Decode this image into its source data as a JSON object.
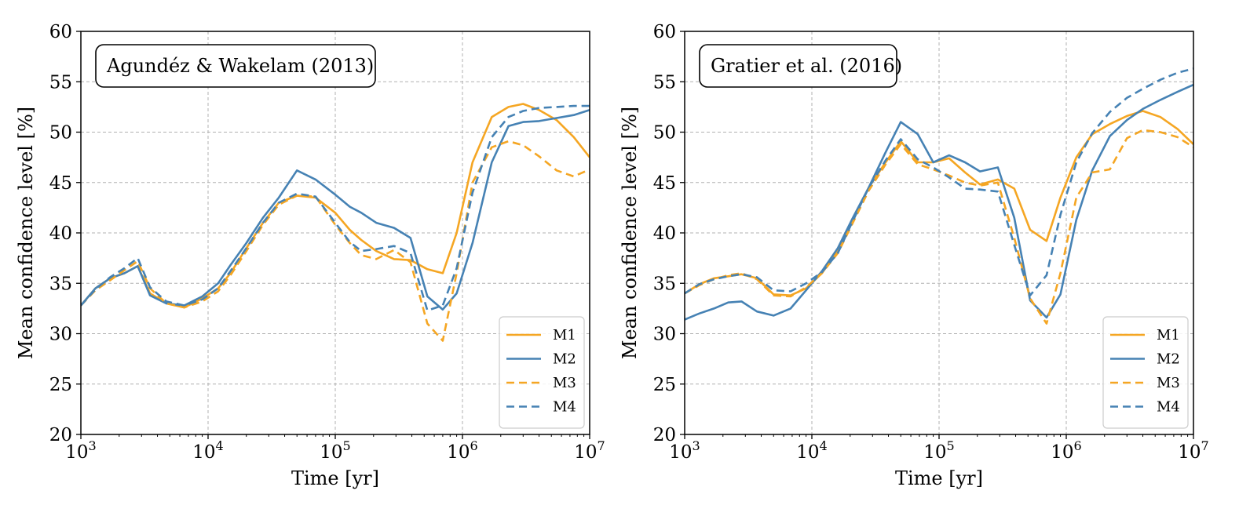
{
  "chart_data": [
    {
      "type": "line",
      "title": "Agundéz & Wakelam (2013)",
      "xlabel": "Time [yr]",
      "ylabel": "Mean confidence level [%]",
      "xscale": "log",
      "xlim": [
        1000,
        10000000
      ],
      "ylim": [
        20,
        60
      ],
      "yticks": [
        "20",
        "25",
        "30",
        "35",
        "40",
        "45",
        "50",
        "55",
        "60"
      ],
      "xticks": [
        {
          "base": "10",
          "exp": "3"
        },
        {
          "base": "10",
          "exp": "4"
        },
        {
          "base": "10",
          "exp": "5"
        },
        {
          "base": "10",
          "exp": "6"
        },
        {
          "base": "10",
          "exp": "7"
        }
      ],
      "grid": true,
      "legend_position": "lower-right",
      "series": [
        {
          "name": "M1",
          "color": "#f5a623",
          "dashed": false,
          "x": [
            1000,
            1300,
            1700,
            2200,
            2800,
            3500,
            4700,
            6500,
            9000,
            12000,
            15000,
            20000,
            27000,
            36000,
            50000,
            70000,
            100000,
            130000,
            160000,
            210000,
            290000,
            390000,
            530000,
            700000,
            900000,
            1200000,
            1700000,
            2300000,
            3000000,
            4000000,
            5500000,
            7500000,
            10000000
          ],
          "y": [
            32.8,
            34.5,
            35.5,
            36.0,
            36.7,
            34.0,
            33.0,
            32.6,
            33.5,
            34.5,
            36.0,
            38.5,
            41.0,
            43.0,
            43.7,
            43.5,
            42.0,
            40.3,
            39.3,
            38.2,
            37.4,
            37.3,
            36.4,
            36.0,
            40.0,
            47.0,
            51.5,
            52.5,
            52.8,
            52.2,
            51.2,
            49.5,
            47.5
          ]
        },
        {
          "name": "M2",
          "color": "#4682b4",
          "dashed": false,
          "x": [
            1000,
            1300,
            1700,
            2200,
            2800,
            3500,
            4700,
            6500,
            9000,
            12000,
            15000,
            20000,
            27000,
            36000,
            50000,
            70000,
            100000,
            130000,
            160000,
            210000,
            290000,
            390000,
            530000,
            700000,
            900000,
            1200000,
            1700000,
            2300000,
            3000000,
            4000000,
            5500000,
            7500000,
            10000000
          ],
          "y": [
            32.8,
            34.5,
            35.5,
            36.0,
            36.7,
            33.8,
            33.0,
            32.8,
            33.7,
            35.0,
            36.8,
            39.0,
            41.5,
            43.5,
            46.2,
            45.3,
            43.8,
            42.6,
            42.0,
            41.0,
            40.5,
            39.5,
            33.7,
            32.4,
            34.0,
            39.0,
            47.0,
            50.6,
            51.0,
            51.1,
            51.4,
            51.7,
            52.2
          ]
        },
        {
          "name": "M3",
          "color": "#f5a623",
          "dashed": true,
          "x": [
            1000,
            1300,
            1700,
            2200,
            2800,
            3500,
            4700,
            6500,
            9000,
            12000,
            15000,
            20000,
            27000,
            36000,
            50000,
            70000,
            100000,
            130000,
            160000,
            210000,
            290000,
            390000,
            530000,
            700000,
            900000,
            1200000,
            1700000,
            2300000,
            3000000,
            4000000,
            5500000,
            7500000,
            10000000
          ],
          "y": [
            32.8,
            34.3,
            35.3,
            36.3,
            37.2,
            34.5,
            33.0,
            32.6,
            33.2,
            34.2,
            35.8,
            38.2,
            40.8,
            42.8,
            43.7,
            43.6,
            40.8,
            39.0,
            37.8,
            37.4,
            38.3,
            37.1,
            31.0,
            29.3,
            36.0,
            45.0,
            48.5,
            49.1,
            48.7,
            47.6,
            46.2,
            45.6,
            46.3
          ]
        },
        {
          "name": "M4",
          "color": "#4682b4",
          "dashed": true,
          "x": [
            1000,
            1300,
            1700,
            2200,
            2800,
            3500,
            4700,
            6500,
            9000,
            12000,
            15000,
            20000,
            27000,
            36000,
            50000,
            70000,
            100000,
            130000,
            160000,
            210000,
            290000,
            390000,
            530000,
            700000,
            900000,
            1200000,
            1700000,
            2300000,
            3000000,
            4000000,
            5500000,
            7500000,
            10000000
          ],
          "y": [
            32.8,
            34.4,
            35.6,
            36.5,
            37.5,
            34.6,
            33.2,
            32.8,
            33.4,
            34.5,
            36.2,
            38.5,
            41.0,
            43.0,
            43.9,
            43.6,
            41.0,
            39.1,
            38.2,
            38.4,
            38.7,
            38.0,
            32.3,
            32.8,
            36.5,
            44.0,
            49.5,
            51.5,
            52.1,
            52.4,
            52.5,
            52.6,
            52.6
          ]
        }
      ]
    },
    {
      "type": "line",
      "title": "Gratier et al. (2016)",
      "xlabel": "Time [yr]",
      "ylabel": "Mean confidence level [%]",
      "xscale": "log",
      "xlim": [
        1000,
        10000000
      ],
      "ylim": [
        20,
        60
      ],
      "yticks": [
        "20",
        "25",
        "30",
        "35",
        "40",
        "45",
        "50",
        "55",
        "60"
      ],
      "xticks": [
        {
          "base": "10",
          "exp": "3"
        },
        {
          "base": "10",
          "exp": "4"
        },
        {
          "base": "10",
          "exp": "5"
        },
        {
          "base": "10",
          "exp": "6"
        },
        {
          "base": "10",
          "exp": "7"
        }
      ],
      "grid": true,
      "legend_position": "lower-right",
      "series": [
        {
          "name": "M1",
          "color": "#f5a623",
          "dashed": false,
          "x": [
            1000,
            1300,
            1700,
            2200,
            2800,
            3700,
            5000,
            6800,
            9000,
            12000,
            16000,
            21000,
            28000,
            38000,
            50000,
            68000,
            90000,
            120000,
            160000,
            210000,
            290000,
            390000,
            520000,
            700000,
            900000,
            1200000,
            1600000,
            2200000,
            3000000,
            4000000,
            5500000,
            7500000,
            10000000
          ],
          "y": [
            34.0,
            34.9,
            35.5,
            35.7,
            35.9,
            35.5,
            33.9,
            33.8,
            34.5,
            36.0,
            38.2,
            41.2,
            44.5,
            47.0,
            49.1,
            47.0,
            47.0,
            47.4,
            46.0,
            44.8,
            45.3,
            44.4,
            40.3,
            39.2,
            43.5,
            47.5,
            49.8,
            50.8,
            51.6,
            52.1,
            51.5,
            50.3,
            48.8
          ]
        },
        {
          "name": "M2",
          "color": "#4682b4",
          "dashed": false,
          "x": [
            1000,
            1300,
            1700,
            2200,
            2800,
            3700,
            5000,
            6800,
            9000,
            12000,
            16000,
            21000,
            28000,
            38000,
            50000,
            68000,
            90000,
            120000,
            160000,
            210000,
            290000,
            390000,
            520000,
            700000,
            900000,
            1200000,
            1600000,
            2200000,
            3000000,
            4000000,
            5500000,
            7500000,
            10000000
          ],
          "y": [
            31.4,
            32.0,
            32.5,
            33.1,
            33.2,
            32.2,
            31.8,
            32.5,
            34.3,
            36.2,
            38.5,
            41.5,
            44.5,
            48.0,
            51.0,
            49.8,
            47.0,
            47.7,
            47.0,
            46.1,
            46.5,
            41.5,
            33.3,
            31.6,
            33.9,
            41.3,
            46.2,
            49.6,
            51.2,
            52.3,
            53.2,
            54.0,
            54.7
          ]
        },
        {
          "name": "M3",
          "color": "#f5a623",
          "dashed": true,
          "x": [
            1000,
            1300,
            1700,
            2200,
            2800,
            3700,
            5000,
            6800,
            9000,
            12000,
            16000,
            21000,
            28000,
            38000,
            50000,
            68000,
            90000,
            120000,
            160000,
            210000,
            290000,
            390000,
            520000,
            700000,
            900000,
            1200000,
            1600000,
            2200000,
            3000000,
            4000000,
            5500000,
            7500000,
            10000000
          ],
          "y": [
            34.0,
            34.8,
            35.4,
            35.8,
            36.0,
            35.4,
            33.8,
            33.7,
            34.6,
            36.0,
            38.0,
            41.0,
            44.2,
            46.8,
            48.8,
            46.8,
            46.3,
            45.7,
            45.0,
            44.7,
            45.0,
            39.5,
            33.5,
            31.0,
            36.0,
            43.5,
            46.0,
            46.3,
            49.4,
            50.2,
            50.0,
            49.5,
            48.5
          ]
        },
        {
          "name": "M4",
          "color": "#4682b4",
          "dashed": true,
          "x": [
            1000,
            1300,
            1700,
            2200,
            2800,
            3700,
            5000,
            6800,
            9000,
            12000,
            16000,
            21000,
            28000,
            38000,
            50000,
            68000,
            90000,
            120000,
            160000,
            210000,
            290000,
            390000,
            520000,
            700000,
            900000,
            1200000,
            1600000,
            2200000,
            3000000,
            4000000,
            5500000,
            7500000,
            10000000
          ],
          "y": [
            34.0,
            34.9,
            35.4,
            35.7,
            35.9,
            35.6,
            34.3,
            34.2,
            35.0,
            36.1,
            38.0,
            41.2,
            44.5,
            47.2,
            49.3,
            47.3,
            46.5,
            45.5,
            44.4,
            44.3,
            44.1,
            38.8,
            33.8,
            35.8,
            41.8,
            47.0,
            49.9,
            52.0,
            53.4,
            54.3,
            55.2,
            55.9,
            56.3
          ]
        }
      ]
    }
  ]
}
